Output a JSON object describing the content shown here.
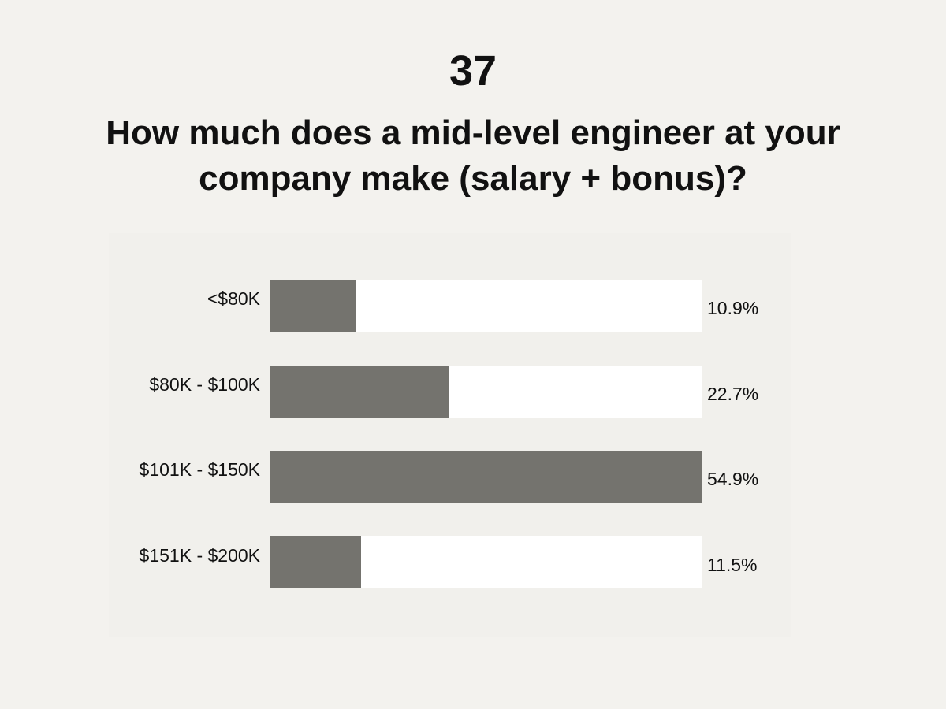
{
  "chart_data": {
    "type": "bar",
    "orientation": "horizontal",
    "title": "37",
    "subtitle": "How much does a mid-level engineer at your company make (salary + bonus)?",
    "categories": [
      "<$80K",
      "$80K - $100K",
      "$101K - $150K",
      "$151K - $200K"
    ],
    "values": [
      10.9,
      22.7,
      54.9,
      11.5
    ],
    "value_labels": [
      "10.9%",
      "22.7%",
      "54.9%",
      "11.5%"
    ],
    "xlim": [
      0,
      54.9
    ],
    "grid": false,
    "legend": "none",
    "colors": {
      "bar": "#74736e",
      "track": "#ffffff",
      "background": "#f3f2ee"
    }
  }
}
